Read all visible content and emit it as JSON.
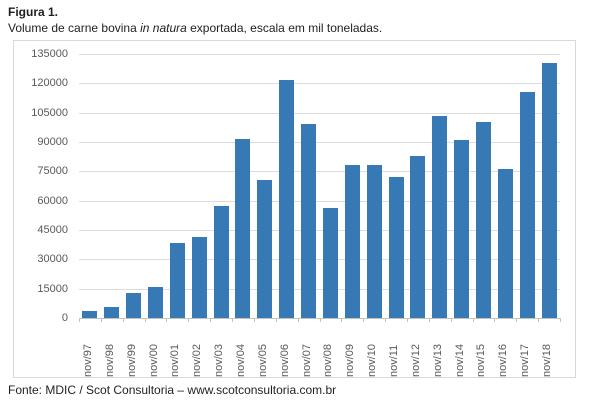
{
  "header": {
    "title": "Figura 1.",
    "subtitle": {
      "part1": "Volume de carne bovina ",
      "italic": "in natura",
      "part2": " exportada, escala em mil toneladas."
    }
  },
  "footer": {
    "source": "Fonte: MDIC / Scot Consultoria – www.scotconsultoria.com.br"
  },
  "colors": {
    "bar": "#3779b5",
    "gridline": "#dcdcdc",
    "axis_line": "#c3c3c3",
    "chart_border": "#d9d9d9",
    "tick_label": "#595959",
    "text": "#1f1f1f"
  },
  "chart_data": {
    "type": "bar",
    "title": "Volume de carne bovina in natura exportada, escala em mil toneladas",
    "categories": [
      "nov/97",
      "nov/98",
      "nov/99",
      "nov/00",
      "nov/01",
      "nov/02",
      "nov/03",
      "nov/04",
      "nov/05",
      "nov/06",
      "nov/07",
      "nov/08",
      "nov/09",
      "nov/10",
      "nov/11",
      "nov/12",
      "nov/13",
      "nov/14",
      "nov/15",
      "nov/16",
      "nov/17",
      "nov/18"
    ],
    "values": [
      3500,
      5600,
      12800,
      15800,
      38500,
      41600,
      57300,
      91400,
      70700,
      121900,
      99200,
      56400,
      78100,
      78400,
      72100,
      82600,
      103100,
      90900,
      100100,
      76000,
      115700,
      130300
    ],
    "xlabel": "",
    "ylabel": "",
    "ylim": [
      0,
      135000
    ],
    "yticks": [
      0,
      15000,
      30000,
      45000,
      60000,
      75000,
      90000,
      105000,
      120000,
      135000
    ],
    "ytick_labels": [
      "0",
      "15000",
      "30000",
      "45000",
      "60000",
      "75000",
      "90000",
      "105000",
      "120000",
      "135000"
    ],
    "grid": true,
    "legend": false
  }
}
